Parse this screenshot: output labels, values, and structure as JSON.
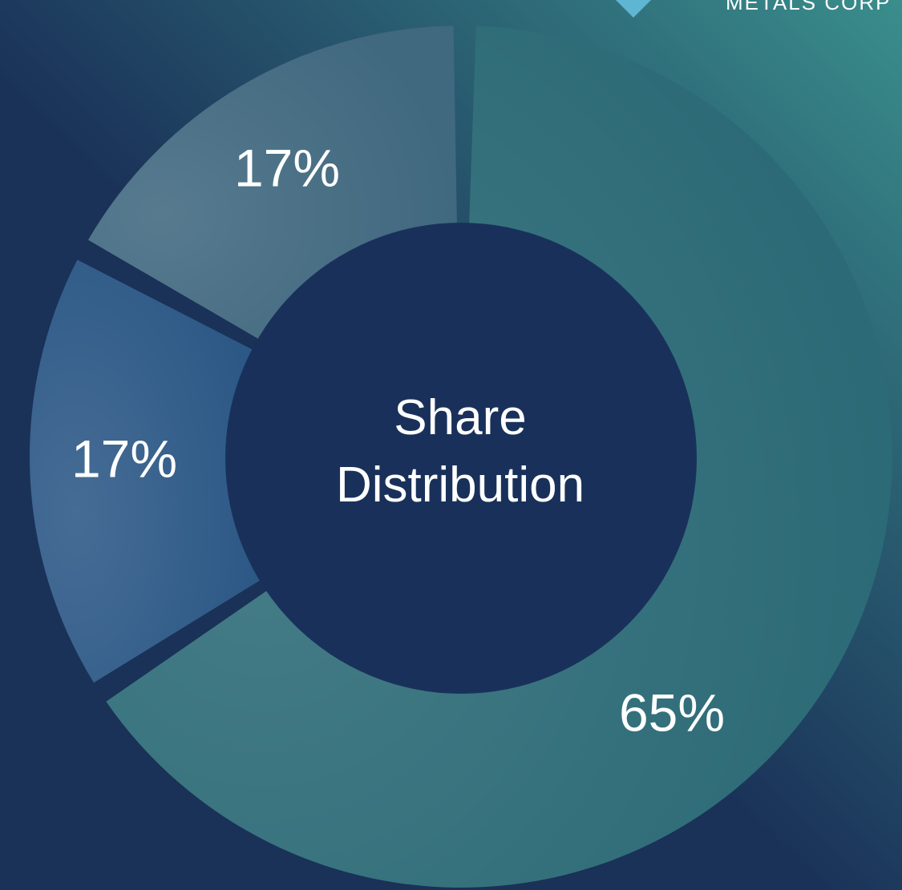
{
  "chart_data": {
    "type": "donut",
    "title": "Share Distribution",
    "logo_text": "METALS CORP",
    "categories": [
      null,
      null,
      null
    ],
    "values": [
      65,
      17,
      17
    ],
    "value_labels": [
      "65%",
      "17%",
      "17%"
    ],
    "colors": [
      "#2b6a76",
      "#2c5886",
      "#40687f"
    ]
  }
}
